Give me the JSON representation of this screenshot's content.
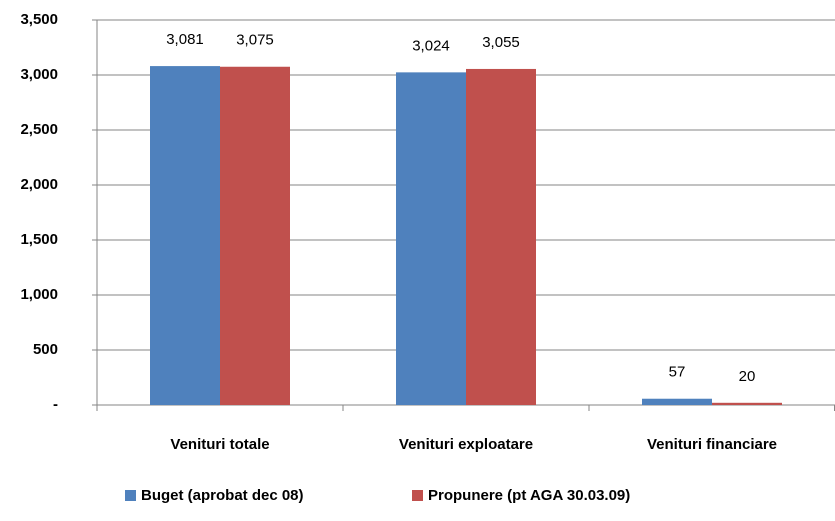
{
  "chart_data": {
    "type": "bar",
    "categories": [
      "Venituri totale",
      "Venituri exploatare",
      "Venituri financiare"
    ],
    "series": [
      {
        "name": "Buget (aprobat dec 08)",
        "color": "#4f81bd",
        "values": [
          3081,
          3024,
          57
        ],
        "value_labels": [
          "3,081",
          "3,024",
          "57"
        ]
      },
      {
        "name": "Propunere (pt AGA 30.03.09)",
        "color": "#c0504d",
        "values": [
          3075,
          3055,
          20
        ],
        "value_labels": [
          "3,075",
          "3,055",
          "20"
        ]
      }
    ],
    "ylim": [
      0,
      3500
    ],
    "yticks": [
      {
        "value": 0,
        "label": "-"
      },
      500,
      {
        "value": 1000,
        "label": "1,000"
      },
      {
        "value": 1500,
        "label": "1,500"
      },
      {
        "value": 2000,
        "label": "2,000"
      },
      {
        "value": 2500,
        "label": "2,500"
      },
      {
        "value": 3000,
        "label": "3,000"
      },
      {
        "value": 3500,
        "label": "3,500"
      }
    ],
    "grid": true,
    "legend": "bottom"
  }
}
